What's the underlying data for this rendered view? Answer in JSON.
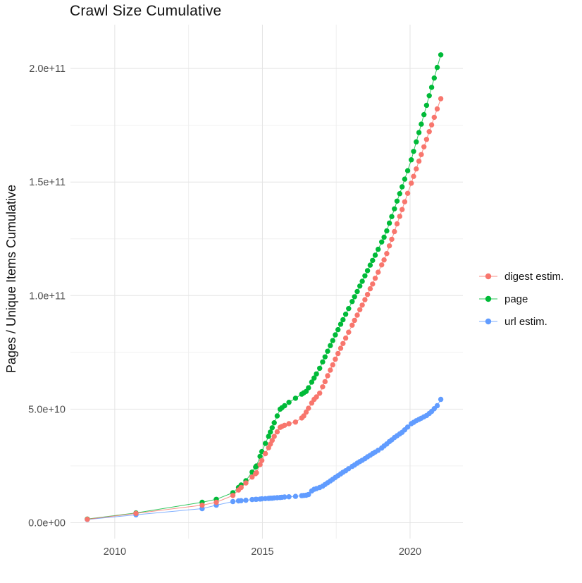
{
  "page": {
    "background": "#FFFFFF"
  },
  "chart_data": {
    "type": "scatter",
    "title": "Crawl Size Cumulative",
    "xlabel": "",
    "ylabel": "Pages / Unique Items Cumulative",
    "value_unit": "billions (1e9)",
    "grid": true,
    "legend_position": "right",
    "xlim_years": [
      2008.5,
      2021.79
    ],
    "ylim_billions": [
      -7,
      219.3
    ],
    "x_ticks": [
      {
        "year": 2010,
        "label": "2010"
      },
      {
        "year": 2015,
        "label": "2015"
      },
      {
        "year": 2020,
        "label": "2020"
      }
    ],
    "x_minor_years": [
      2012.5,
      2017.5
    ],
    "y_ticks": [
      {
        "billions": 0,
        "label": "0.0e+00"
      },
      {
        "billions": 50,
        "label": "5.0e+10"
      },
      {
        "billions": 100,
        "label": "1.0e+11"
      },
      {
        "billions": 150,
        "label": "1.5e+11"
      },
      {
        "billions": 200,
        "label": "2.0e+11"
      }
    ],
    "y_minor_billions": [
      25,
      75,
      125,
      175
    ],
    "x_years": [
      2009.07,
      2010.72,
      2012.96,
      2013.44,
      2014.0,
      2014.19,
      2014.28,
      2014.44,
      2014.65,
      2014.77,
      2014.8,
      2014.92,
      2014.98,
      2015.1,
      2015.21,
      2015.27,
      2015.33,
      2015.4,
      2015.5,
      2015.6,
      2015.66,
      2015.75,
      2015.9,
      2016.12,
      2016.33,
      2016.4,
      2016.48,
      2016.56,
      2016.67,
      2016.75,
      2016.83,
      2016.94,
      2017.04,
      2017.12,
      2017.21,
      2017.3,
      2017.38,
      2017.47,
      2017.56,
      2017.65,
      2017.73,
      2017.82,
      2017.92,
      2018.04,
      2018.12,
      2018.21,
      2018.3,
      2018.38,
      2018.47,
      2018.56,
      2018.65,
      2018.73,
      2018.82,
      2018.92,
      2019.04,
      2019.12,
      2019.21,
      2019.3,
      2019.38,
      2019.47,
      2019.56,
      2019.65,
      2019.73,
      2019.82,
      2019.92,
      2020.04,
      2020.12,
      2020.21,
      2020.3,
      2020.38,
      2020.47,
      2020.56,
      2020.65,
      2020.73,
      2020.82,
      2020.92,
      2021.04
    ],
    "series": [
      {
        "name": "digest estim.",
        "color": "#F8766D",
        "values_billions": [
          1.5,
          4.1,
          7.7,
          9.0,
          12.0,
          14.4,
          15.5,
          17.5,
          20.1,
          21.6,
          22.0,
          25.6,
          27.4,
          30.4,
          33.0,
          34.6,
          36.2,
          38.0,
          40.0,
          42.0,
          42.4,
          42.9,
          43.6,
          44.3,
          46.1,
          47.0,
          48.7,
          50.4,
          52.7,
          54.3,
          55.4,
          57.0,
          59.8,
          62.1,
          64.7,
          67.2,
          69.5,
          72.0,
          74.5,
          76.8,
          78.9,
          81.3,
          83.9,
          87.0,
          89.1,
          91.4,
          93.8,
          95.8,
          98.2,
          100.5,
          103.0,
          105.1,
          107.6,
          110.3,
          113.5,
          115.7,
          118.5,
          121.9,
          124.8,
          128.2,
          131.6,
          134.9,
          137.9,
          141.3,
          145.0,
          149.5,
          152.5,
          155.8,
          159.2,
          162.1,
          165.5,
          168.8,
          172.2,
          175.2,
          178.5,
          182.2,
          186.7
        ]
      },
      {
        "name": "page",
        "color": "#00BA38",
        "values_billions": [
          1.6,
          4.3,
          9.0,
          10.3,
          13.2,
          15.5,
          16.6,
          18.5,
          22.3,
          24.5,
          25.0,
          29.2,
          31.3,
          34.9,
          38.0,
          39.9,
          41.8,
          44.0,
          47.0,
          50.0,
          50.6,
          51.5,
          53.0,
          54.8,
          56.6,
          57.2,
          57.8,
          59.4,
          61.9,
          63.7,
          65.5,
          68.0,
          70.8,
          73.0,
          75.5,
          78.0,
          80.2,
          82.7,
          85.0,
          87.4,
          89.4,
          91.8,
          94.3,
          97.4,
          99.5,
          101.8,
          104.2,
          106.3,
          108.7,
          111.0,
          113.4,
          115.5,
          117.8,
          120.4,
          123.6,
          125.7,
          128.5,
          131.9,
          134.8,
          138.2,
          141.6,
          144.9,
          147.9,
          151.3,
          155.0,
          159.8,
          163.5,
          167.7,
          171.8,
          175.5,
          179.7,
          183.8,
          188.0,
          191.7,
          195.8,
          200.5,
          206.0
        ]
      },
      {
        "name": "url estim.",
        "color": "#619CFF",
        "values_billions": [
          1.4,
          3.5,
          6.2,
          7.7,
          9.3,
          9.6,
          9.7,
          9.9,
          10.2,
          10.3,
          10.3,
          10.4,
          10.5,
          10.6,
          10.7,
          10.8,
          10.8,
          10.9,
          11.0,
          11.1,
          11.2,
          11.3,
          11.4,
          11.6,
          11.9,
          12.0,
          12.1,
          12.4,
          14.0,
          14.7,
          15.0,
          15.5,
          16.1,
          16.8,
          17.6,
          18.4,
          19.1,
          19.9,
          20.7,
          21.5,
          22.2,
          22.9,
          23.8,
          24.8,
          25.4,
          26.2,
          26.9,
          27.5,
          28.2,
          29.0,
          29.7,
          30.4,
          31.1,
          31.9,
          32.9,
          33.8,
          34.7,
          35.7,
          36.5,
          37.5,
          38.3,
          39.1,
          39.8,
          40.9,
          42.1,
          43.6,
          44.2,
          44.9,
          45.5,
          46.0,
          46.6,
          47.2,
          48.1,
          49.0,
          50.2,
          51.5,
          54.3
        ]
      }
    ],
    "colors": {
      "grid_major": "#E4E4E4",
      "grid_minor": "#F0F0F0",
      "axis_text": "#4D4D4D"
    }
  }
}
